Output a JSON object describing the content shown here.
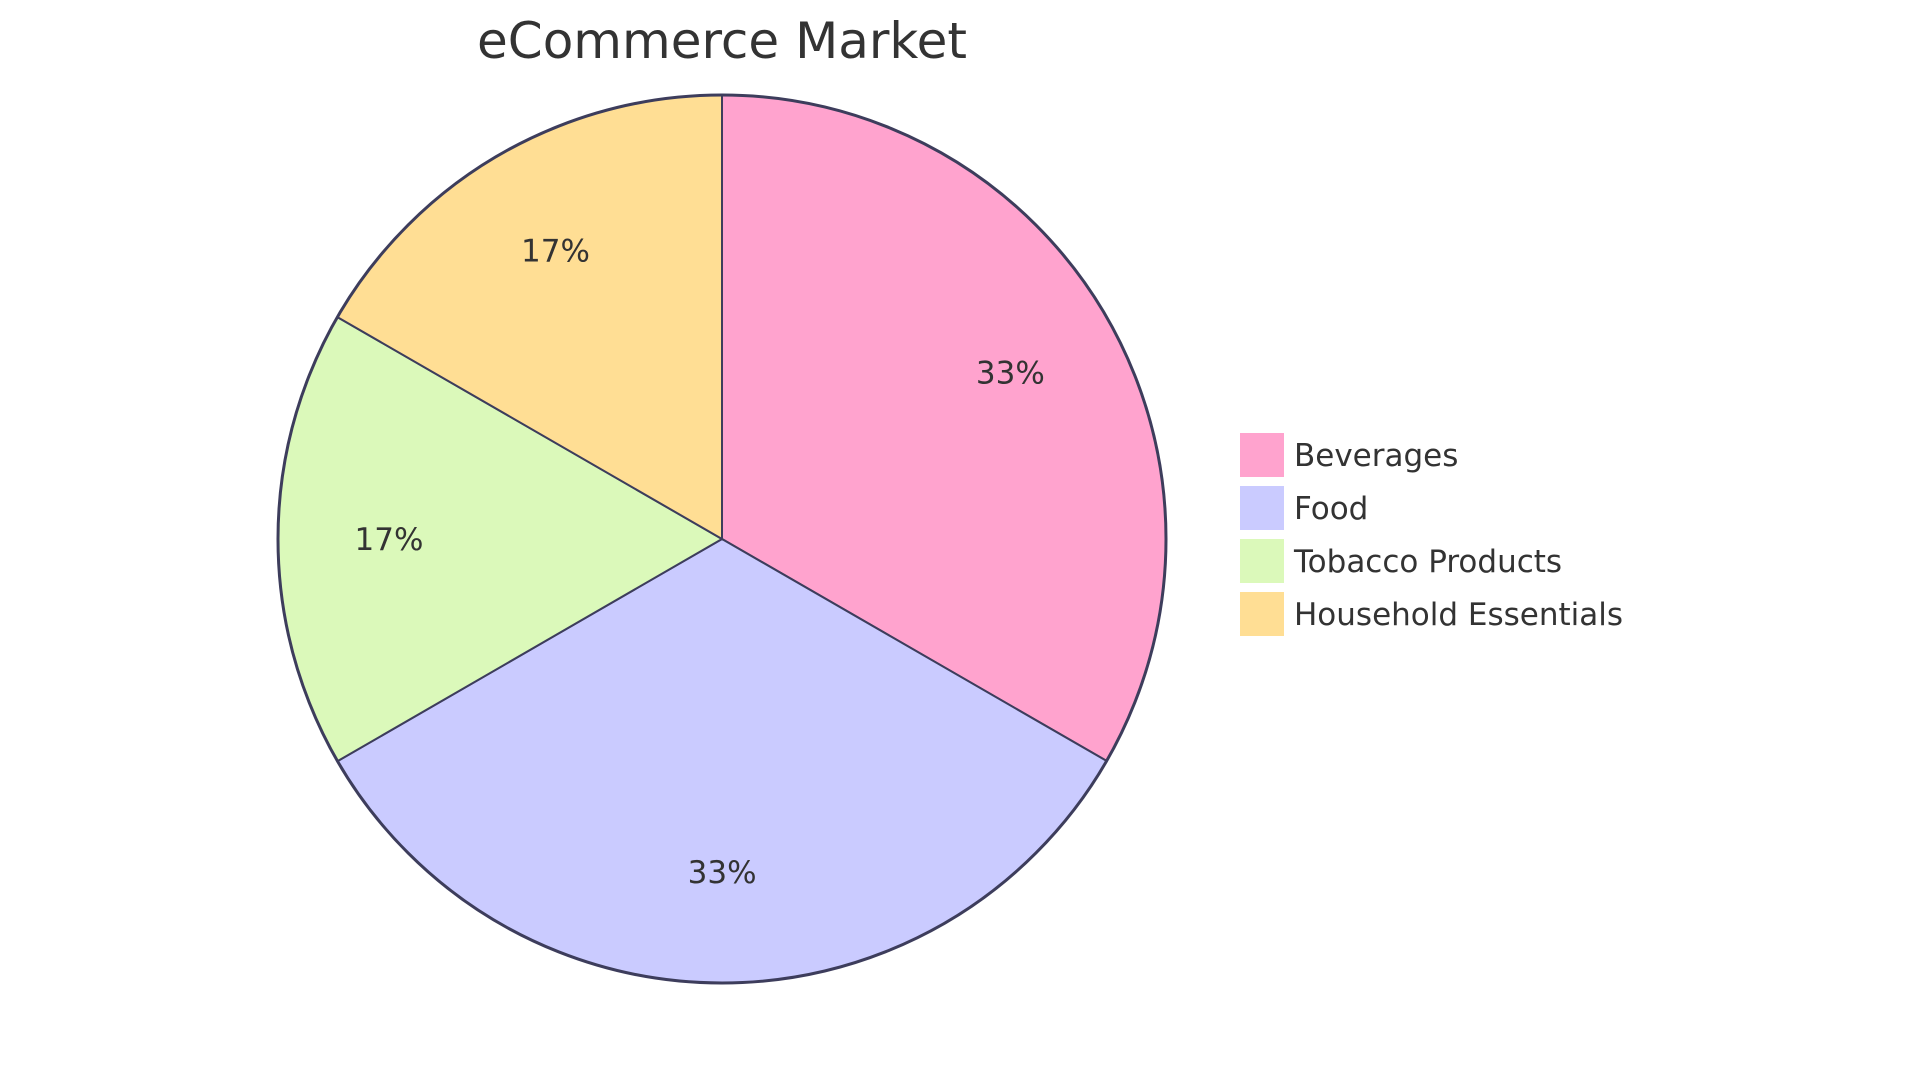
{
  "chart_data": {
    "type": "pie",
    "title": "eCommerce Market",
    "categories": [
      "Beverages",
      "Food",
      "Tobacco Products",
      "Household Essentials"
    ],
    "values": [
      33.33,
      33.33,
      16.67,
      16.67
    ],
    "percent_labels": [
      "33%",
      "33%",
      "17%",
      "17%"
    ],
    "colors": [
      "#FFA3CE",
      "#CACBFF",
      "#DBF9BA",
      "#FFDE94"
    ],
    "stroke_color": "#3D3D5C",
    "start": "top",
    "direction": "clockwise",
    "legend": "right"
  }
}
